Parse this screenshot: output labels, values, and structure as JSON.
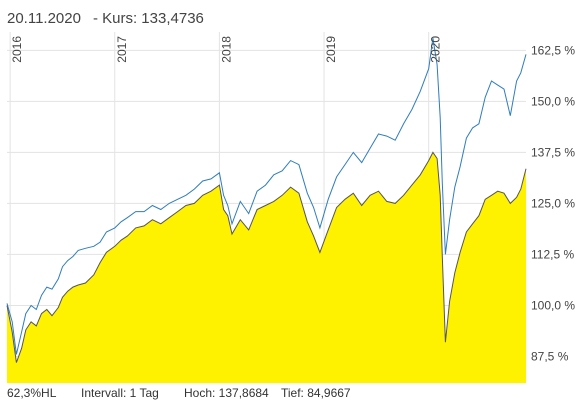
{
  "header": {
    "date": "20.11.2020",
    "price_label": "- Kurs: 133,4736"
  },
  "footer": {
    "range": "62,3%HL",
    "interval": "Intervall: 1 Tag",
    "high": "Hoch: 137,8684",
    "low": "Tief: 84,9667"
  },
  "colors": {
    "area_fill": "#FFF200",
    "area_line": "#555555",
    "comparison_line": "#2E7DBF",
    "grid": "#E3E3E3"
  },
  "chart_data": {
    "type": "area",
    "title": "",
    "xlabel": "",
    "ylabel": "",
    "x_range": [
      2015.97,
      2020.93
    ],
    "ylim": [
      81,
      167
    ],
    "grid": true,
    "year_ticks": [
      {
        "label": "2016",
        "x": 2016.0
      },
      {
        "label": "2017",
        "x": 2017.0
      },
      {
        "label": "2018",
        "x": 2018.0
      },
      {
        "label": "2019",
        "x": 2019.0
      },
      {
        "label": "2020",
        "x": 2020.0
      }
    ],
    "y_ticks": [
      {
        "label": "162,5 %",
        "value": 162.5
      },
      {
        "label": "150,0 %",
        "value": 150.0
      },
      {
        "label": "137,5 %",
        "value": 137.5
      },
      {
        "label": "125,0 %",
        "value": 125.0
      },
      {
        "label": "112,5 %",
        "value": 112.5
      },
      {
        "label": "100,0 %",
        "value": 100.0
      },
      {
        "label": "87,5 %",
        "value": 87.5
      }
    ],
    "series": [
      {
        "role": "area",
        "x": [
          2015.97,
          2016.02,
          2016.06,
          2016.11,
          2016.15,
          2016.2,
          2016.25,
          2016.3,
          2016.35,
          2016.4,
          2016.46,
          2016.5,
          2016.55,
          2016.6,
          2016.65,
          2016.72,
          2016.8,
          2016.86,
          2016.92,
          2017.0,
          2017.06,
          2017.12,
          2017.2,
          2017.28,
          2017.36,
          2017.44,
          2017.52,
          2017.6,
          2017.68,
          2017.76,
          2017.84,
          2017.92,
          2018.0,
          2018.04,
          2018.08,
          2018.12,
          2018.2,
          2018.28,
          2018.36,
          2018.44,
          2018.52,
          2018.6,
          2018.68,
          2018.76,
          2018.84,
          2018.9,
          2018.96,
          2019.04,
          2019.12,
          2019.2,
          2019.28,
          2019.36,
          2019.44,
          2019.52,
          2019.6,
          2019.68,
          2019.76,
          2019.84,
          2019.92,
          2020.0,
          2020.04,
          2020.08,
          2020.11,
          2020.13,
          2020.16,
          2020.2,
          2020.25,
          2020.3,
          2020.36,
          2020.42,
          2020.48,
          2020.54,
          2020.6,
          2020.66,
          2020.72,
          2020.78,
          2020.84,
          2020.88,
          2020.93
        ],
        "y": [
          100.0,
          93.5,
          86.0,
          89.5,
          94.0,
          96.0,
          95.0,
          98.0,
          99.0,
          97.5,
          99.5,
          102.0,
          103.5,
          104.5,
          105.0,
          105.5,
          107.5,
          110.5,
          113.0,
          114.5,
          116.0,
          117.0,
          119.0,
          119.5,
          121.0,
          120.0,
          121.5,
          123.0,
          124.5,
          125.0,
          127.0,
          128.0,
          129.5,
          123.5,
          122.0,
          117.5,
          121.0,
          118.5,
          123.5,
          124.5,
          125.5,
          127.0,
          129.0,
          127.5,
          120.5,
          117.0,
          113.0,
          118.5,
          124.0,
          126.0,
          127.5,
          124.5,
          127.0,
          128.0,
          125.5,
          125.0,
          127.0,
          129.5,
          132.0,
          135.5,
          137.5,
          136.0,
          127.0,
          112.0,
          91.0,
          101.0,
          108.0,
          113.0,
          118.0,
          120.0,
          122.0,
          126.0,
          127.0,
          128.0,
          127.5,
          125.0,
          126.5,
          128.5,
          133.5
        ]
      },
      {
        "role": "comparison",
        "x": [
          2015.97,
          2016.02,
          2016.06,
          2016.11,
          2016.15,
          2016.2,
          2016.25,
          2016.3,
          2016.35,
          2016.4,
          2016.46,
          2016.5,
          2016.55,
          2016.6,
          2016.65,
          2016.72,
          2016.8,
          2016.86,
          2016.92,
          2017.0,
          2017.06,
          2017.12,
          2017.2,
          2017.28,
          2017.36,
          2017.44,
          2017.52,
          2017.6,
          2017.68,
          2017.76,
          2017.84,
          2017.92,
          2018.0,
          2018.04,
          2018.08,
          2018.12,
          2018.2,
          2018.28,
          2018.36,
          2018.44,
          2018.52,
          2018.6,
          2018.68,
          2018.76,
          2018.84,
          2018.9,
          2018.96,
          2019.04,
          2019.12,
          2019.2,
          2019.28,
          2019.36,
          2019.44,
          2019.52,
          2019.6,
          2019.68,
          2019.76,
          2019.84,
          2019.92,
          2020.0,
          2020.04,
          2020.08,
          2020.11,
          2020.13,
          2020.16,
          2020.2,
          2020.25,
          2020.3,
          2020.36,
          2020.42,
          2020.48,
          2020.54,
          2020.6,
          2020.66,
          2020.72,
          2020.78,
          2020.84,
          2020.88,
          2020.93
        ],
        "y": [
          100.5,
          96.0,
          88.0,
          93.5,
          98.0,
          100.0,
          99.0,
          102.5,
          104.5,
          104.0,
          106.5,
          109.5,
          111.0,
          112.0,
          113.5,
          114.0,
          114.5,
          115.5,
          118.0,
          119.0,
          120.5,
          121.5,
          123.0,
          123.0,
          124.5,
          123.5,
          125.0,
          126.0,
          127.0,
          128.5,
          130.5,
          131.0,
          132.5,
          127.0,
          124.5,
          120.0,
          125.5,
          122.5,
          128.0,
          129.5,
          132.0,
          133.0,
          135.5,
          134.5,
          127.5,
          124.0,
          119.0,
          126.0,
          131.5,
          134.5,
          137.5,
          135.0,
          138.5,
          142.0,
          141.5,
          140.5,
          144.5,
          148.0,
          152.5,
          158.0,
          165.5,
          159.0,
          146.0,
          130.0,
          112.5,
          121.0,
          129.0,
          134.0,
          141.0,
          143.5,
          144.5,
          151.0,
          155.0,
          154.0,
          153.0,
          146.5,
          155.0,
          157.0,
          161.5
        ]
      }
    ]
  }
}
